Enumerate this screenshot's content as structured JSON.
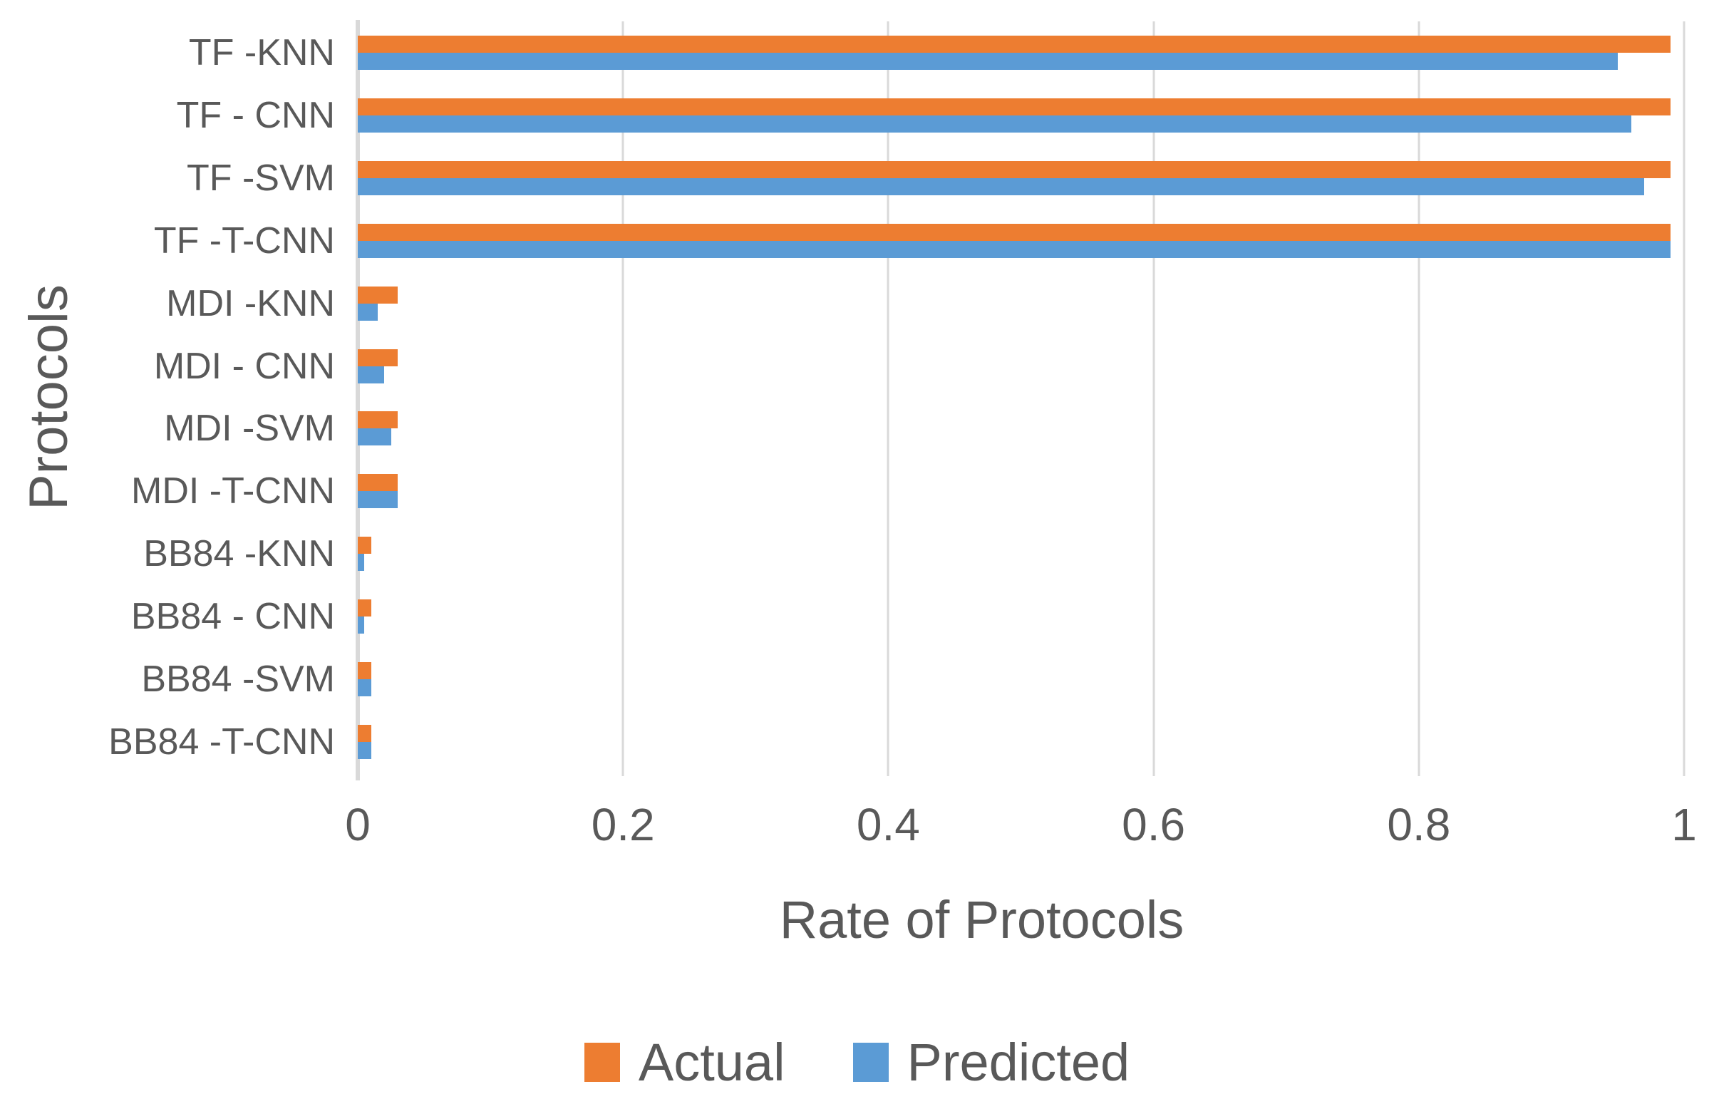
{
  "colors": {
    "actual": "#ED7D31",
    "predicted": "#5B9BD5",
    "gridline": "#D9D9D9",
    "axis_line": "#D9D9D9",
    "text": "#595959",
    "background": "#FFFFFF"
  },
  "chart_data": {
    "type": "bar",
    "orientation": "horizontal",
    "title": "",
    "xlabel": "Rate of Protocols",
    "ylabel": "Protocols",
    "xlim": [
      0,
      1
    ],
    "grid": "vertical",
    "legend_position": "bottom",
    "categories": [
      "TF -KNN",
      "TF - CNN",
      "TF -SVM",
      "TF -T-CNN",
      "MDI -KNN",
      "MDI - CNN",
      "MDI -SVM",
      "MDI -T-CNN",
      "BB84 -KNN",
      "BB84 - CNN",
      "BB84 -SVM",
      "BB84 -T-CNN"
    ],
    "series": [
      {
        "name": "Actual",
        "color": "#ED7D31",
        "values": [
          0.99,
          0.99,
          0.99,
          0.99,
          0.03,
          0.03,
          0.03,
          0.03,
          0.01,
          0.01,
          0.01,
          0.01
        ]
      },
      {
        "name": "Predicted",
        "color": "#5B9BD5",
        "values": [
          0.95,
          0.96,
          0.97,
          0.99,
          0.015,
          0.02,
          0.025,
          0.03,
          0.005,
          0.005,
          0.01,
          0.01
        ]
      }
    ],
    "xticks": [
      {
        "label": "0",
        "value": 0
      },
      {
        "label": "0.2",
        "value": 0.2
      },
      {
        "label": "0.4",
        "value": 0.4
      },
      {
        "label": "0.6",
        "value": 0.6
      },
      {
        "label": "0.8",
        "value": 0.8
      },
      {
        "label": "1",
        "value": 1
      }
    ]
  }
}
